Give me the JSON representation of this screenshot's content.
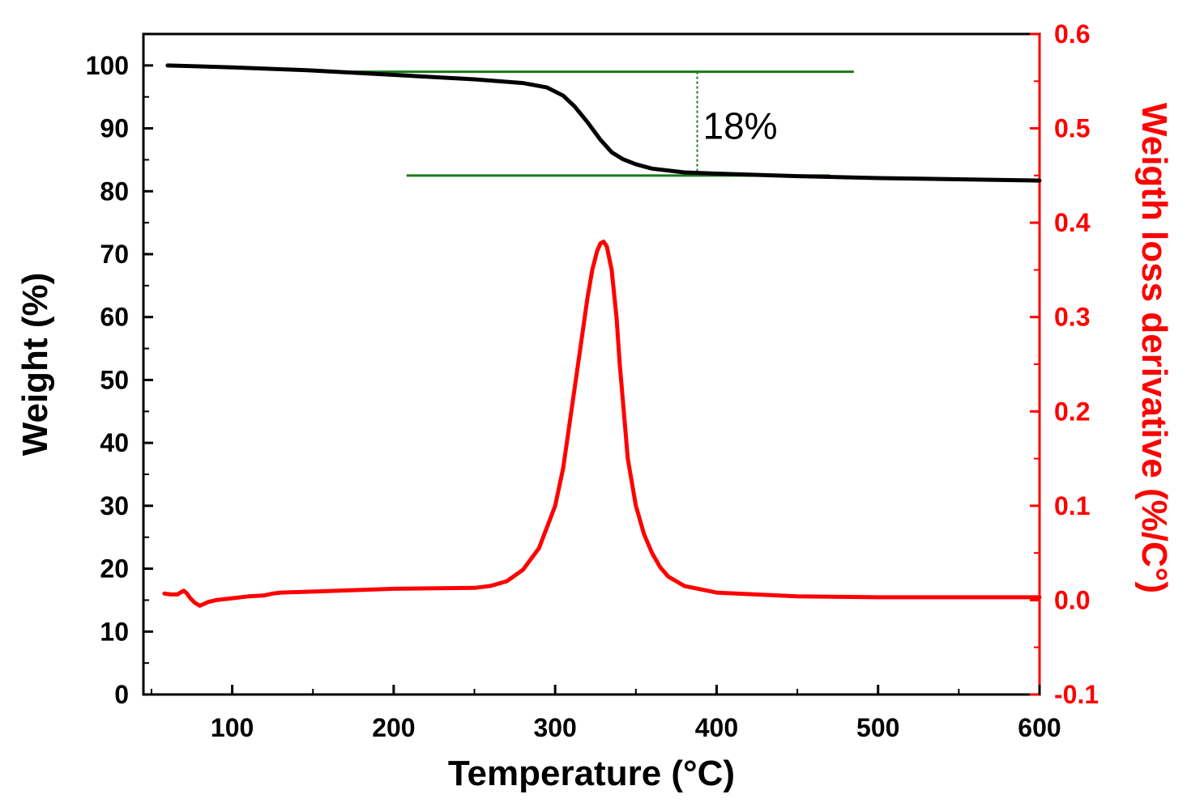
{
  "chart_data": {
    "type": "line",
    "title": "",
    "xlabel": "Temperature (°C)",
    "ylabel": "Weight (%)",
    "y2label": "Weigth loss derivative (%/C°)",
    "xlim": [
      45,
      600
    ],
    "ylim": [
      0,
      105
    ],
    "y2lim": [
      -0.1,
      0.6
    ],
    "x_ticks": [
      100,
      200,
      300,
      400,
      500,
      600
    ],
    "y_ticks": [
      0,
      10,
      20,
      30,
      40,
      50,
      60,
      70,
      80,
      90,
      100
    ],
    "y2_ticks": [
      "-0.1",
      "0.0",
      "0.1",
      "0.2",
      "0.3",
      "0.4",
      "0.5",
      "0.6"
    ],
    "grid": false,
    "colors": {
      "weight": "#000000",
      "derivative": "#ff0000",
      "guides": "#1a7a1a",
      "axis": "#000000"
    },
    "series": [
      {
        "name": "Weight",
        "axis": "left",
        "color": "#000000",
        "x": [
          60,
          100,
          150,
          200,
          250,
          280,
          295,
          305,
          312,
          320,
          328,
          335,
          342,
          350,
          360,
          380,
          400,
          450,
          500,
          550,
          600
        ],
        "y": [
          100,
          99.7,
          99.2,
          98.5,
          97.8,
          97.2,
          96.5,
          95.2,
          93.5,
          91,
          88.2,
          86.2,
          85.1,
          84.3,
          83.6,
          83.0,
          82.8,
          82.4,
          82.1,
          81.9,
          81.7
        ]
      },
      {
        "name": "Weight loss derivative",
        "axis": "right",
        "color": "#ff0000",
        "x": [
          58,
          62,
          66,
          68,
          70,
          72,
          74,
          77,
          80,
          85,
          90,
          100,
          110,
          120,
          125,
          130,
          150,
          200,
          250,
          260,
          270,
          280,
          290,
          300,
          305,
          310,
          315,
          320,
          323,
          326,
          328,
          330,
          332,
          335,
          338,
          340,
          343,
          345,
          350,
          355,
          360,
          365,
          370,
          380,
          400,
          450,
          500,
          550,
          600
        ],
        "y": [
          0.007,
          0.006,
          0.006,
          0.008,
          0.01,
          0.007,
          0.002,
          -0.003,
          -0.006,
          -0.002,
          0.0,
          0.002,
          0.004,
          0.005,
          0.007,
          0.008,
          0.009,
          0.012,
          0.013,
          0.015,
          0.02,
          0.032,
          0.055,
          0.1,
          0.14,
          0.2,
          0.26,
          0.32,
          0.35,
          0.37,
          0.378,
          0.38,
          0.375,
          0.35,
          0.3,
          0.25,
          0.19,
          0.15,
          0.1,
          0.07,
          0.05,
          0.035,
          0.025,
          0.015,
          0.008,
          0.004,
          0.003,
          0.003,
          0.003
        ]
      }
    ],
    "annotations": [
      {
        "type": "hline",
        "axis": "left",
        "y": 99,
        "x_start": 175,
        "x_end": 485,
        "color": "#1a7a1a"
      },
      {
        "type": "hline",
        "axis": "left",
        "y": 82.5,
        "x_start": 208,
        "x_end": 470,
        "color": "#1a7a1a"
      },
      {
        "type": "vline-dotted",
        "axis": "left",
        "x": 388,
        "y_start": 82.5,
        "y_end": 99,
        "color": "#1a7a1a"
      },
      {
        "type": "text",
        "text": "18%",
        "x": 390,
        "y": 90.5
      }
    ]
  }
}
